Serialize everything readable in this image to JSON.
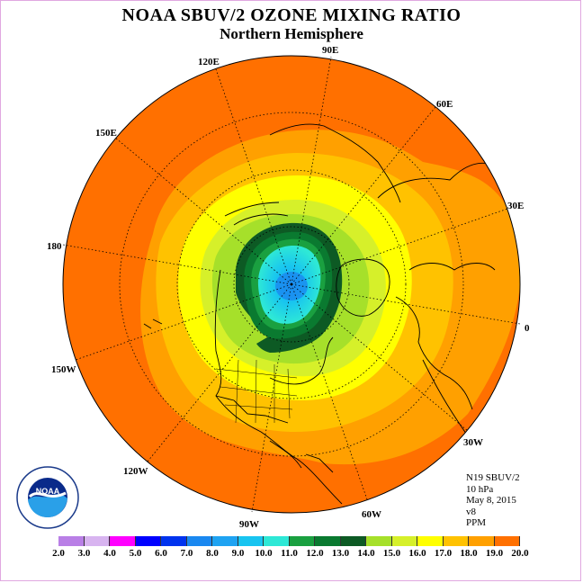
{
  "title": "NOAA SBUV/2 OZONE MIXING RATIO",
  "subtitle": "Northern Hemisphere",
  "longitude_labels": [
    "90E",
    "60E",
    "30E",
    "0",
    "30W",
    "60W",
    "90W",
    "120W",
    "150W",
    "180",
    "150E",
    "120E"
  ],
  "info": {
    "satellite": "N19 SBUV/2",
    "level": "10 hPa",
    "date": "May 8, 2015",
    "version": "v8",
    "units": "PPM"
  },
  "logo_text": "NOAA",
  "colorbar": {
    "labels": [
      "2.0",
      "3.0",
      "4.0",
      "5.0",
      "6.0",
      "7.0",
      "8.0",
      "9.0",
      "10.0",
      "11.0",
      "12.0",
      "13.0",
      "14.0",
      "15.0",
      "16.0",
      "17.0",
      "18.0",
      "19.0",
      "20.0"
    ],
    "colors": [
      "#b97fe6",
      "#d8b4f0",
      "#ff00ff",
      "#0000ff",
      "#0033ee",
      "#1a88f0",
      "#1fa3f2",
      "#18c4f0",
      "#2ee8d6",
      "#1aa040",
      "#0a7a30",
      "#0d5a24",
      "#a6e02a",
      "#d6f02a",
      "#ffff00",
      "#ffc200",
      "#ffa000",
      "#ff7000",
      "#e8001c",
      "#8b5a2b"
    ]
  }
}
